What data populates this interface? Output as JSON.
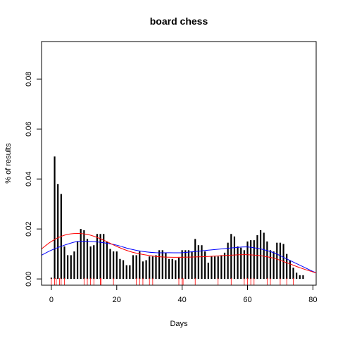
{
  "chart_data": {
    "type": "bar",
    "title": "board chess",
    "xlabel": "Days",
    "ylabel": "% of results",
    "xlim": [
      -3,
      81
    ],
    "ylim": [
      -0.0025,
      0.095
    ],
    "x_ticks": [
      0,
      20,
      40,
      60,
      80
    ],
    "x_tick_labels": [
      "0",
      "20",
      "40",
      "60",
      "80"
    ],
    "y_ticks": [
      0.0,
      0.02,
      0.04,
      0.06,
      0.08
    ],
    "y_tick_labels": [
      "0.00",
      "0.02",
      "0.04",
      "0.06",
      "0.08"
    ],
    "grid": false,
    "bars": {
      "color": "#000000",
      "x": [
        0,
        1,
        2,
        3,
        4,
        5,
        6,
        7,
        8,
        9,
        10,
        11,
        12,
        13,
        14,
        15,
        16,
        17,
        18,
        19,
        20,
        21,
        22,
        23,
        24,
        25,
        26,
        27,
        28,
        29,
        30,
        31,
        32,
        33,
        34,
        35,
        36,
        37,
        38,
        39,
        40,
        41,
        42,
        43,
        44,
        45,
        46,
        47,
        48,
        49,
        50,
        51,
        52,
        53,
        54,
        55,
        56,
        57,
        58,
        59,
        60,
        61,
        62,
        63,
        64,
        65,
        66,
        67,
        68,
        69,
        70,
        71,
        72,
        73,
        74,
        75,
        76,
        77
      ],
      "values": [
        0.0005,
        0.049,
        0.038,
        0.034,
        0.013,
        0.0095,
        0.0095,
        0.011,
        0.015,
        0.02,
        0.0195,
        0.016,
        0.013,
        0.0135,
        0.018,
        0.018,
        0.018,
        0.015,
        0.012,
        0.011,
        0.011,
        0.008,
        0.0075,
        0.0055,
        0.0055,
        0.0095,
        0.0095,
        0.011,
        0.007,
        0.0075,
        0.009,
        0.009,
        0.0095,
        0.0115,
        0.0115,
        0.0105,
        0.008,
        0.008,
        0.0075,
        0.0085,
        0.0115,
        0.0115,
        0.0115,
        0.011,
        0.016,
        0.0135,
        0.0135,
        0.011,
        0.0065,
        0.009,
        0.009,
        0.009,
        0.0095,
        0.0105,
        0.0145,
        0.018,
        0.017,
        0.013,
        0.0125,
        0.0115,
        0.015,
        0.0155,
        0.0155,
        0.0175,
        0.0195,
        0.0185,
        0.015,
        0.0115,
        0.011,
        0.0145,
        0.0145,
        0.014,
        0.01,
        0.0075,
        0.0045,
        0.0025,
        0.0015,
        0.0015
      ]
    },
    "series": [
      {
        "type": "line",
        "color": "#0000ff",
        "x": [
          -3,
          0,
          4,
          8,
          12,
          16,
          20,
          24,
          28,
          32,
          36,
          40,
          44,
          48,
          52,
          56,
          60,
          64,
          68,
          72,
          76,
          80,
          81
        ],
        "values": [
          0.0095,
          0.0115,
          0.0135,
          0.015,
          0.015,
          0.0145,
          0.0135,
          0.012,
          0.011,
          0.0105,
          0.0105,
          0.0105,
          0.011,
          0.0115,
          0.012,
          0.0125,
          0.0128,
          0.012,
          0.0105,
          0.008,
          0.0055,
          0.003,
          0.0025
        ]
      },
      {
        "type": "line",
        "color": "#ff0000",
        "x": [
          -3,
          0,
          4,
          8,
          12,
          16,
          20,
          24,
          28,
          32,
          36,
          40,
          44,
          48,
          52,
          56,
          60,
          64,
          68,
          72,
          76,
          80,
          81
        ],
        "values": [
          0.012,
          0.015,
          0.0175,
          0.0182,
          0.0175,
          0.0155,
          0.013,
          0.011,
          0.0098,
          0.009,
          0.0087,
          0.0087,
          0.0088,
          0.009,
          0.0093,
          0.0096,
          0.0097,
          0.0093,
          0.0083,
          0.0065,
          0.0045,
          0.0028,
          0.0025
        ]
      }
    ],
    "rug": {
      "color": "#ff0000",
      "x": [
        0,
        1,
        1.5,
        2.5,
        3,
        4,
        10,
        11,
        12,
        13,
        15,
        15.2,
        19,
        26,
        27,
        28,
        30,
        31,
        39,
        40,
        40.3,
        44,
        51,
        55,
        59,
        60,
        61,
        62,
        66,
        67,
        70,
        72,
        74
      ]
    }
  }
}
